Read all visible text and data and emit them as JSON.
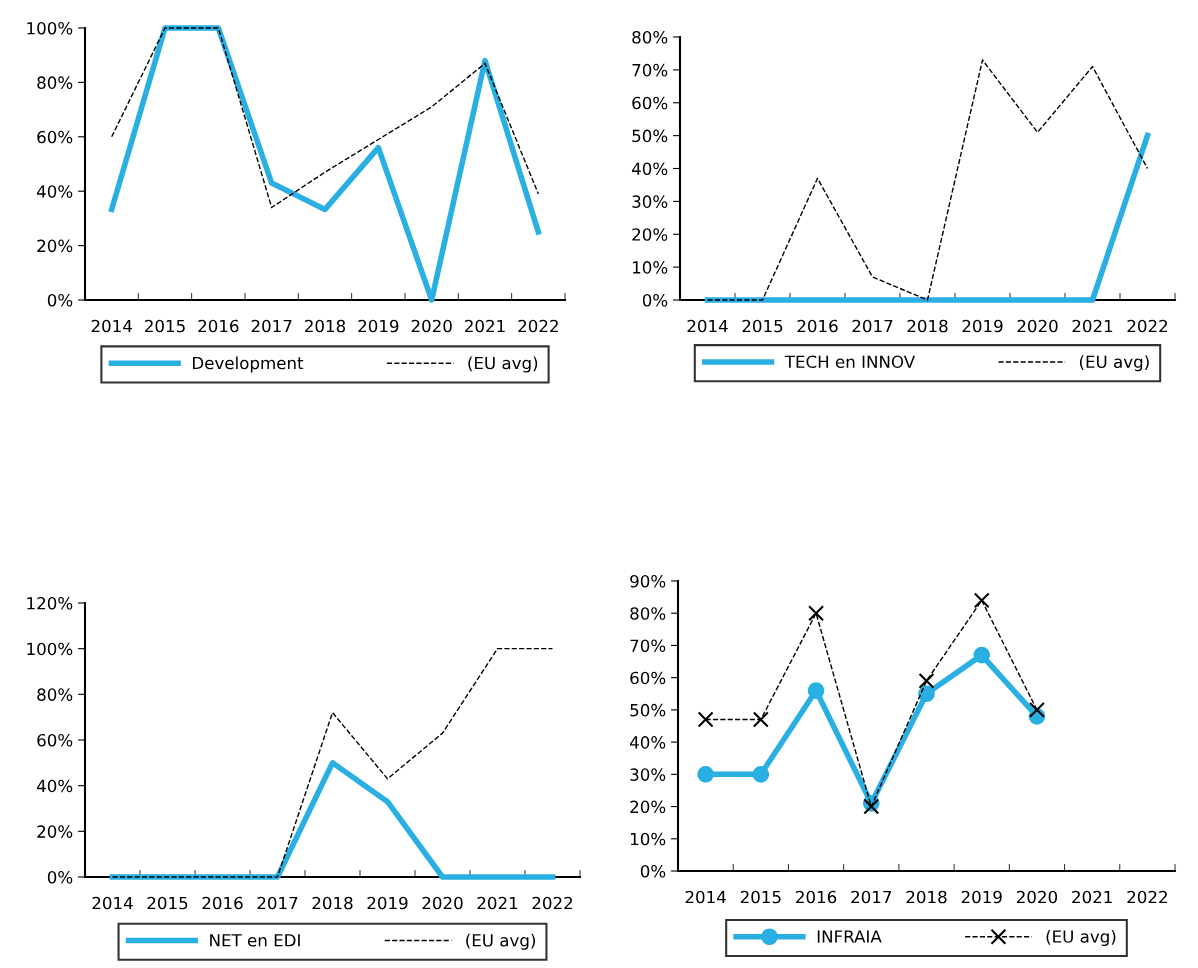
{
  "chart_data": [
    {
      "type": "line",
      "categories": [
        "2014",
        "2015",
        "2016",
        "2017",
        "2018",
        "2019",
        "2020",
        "2021",
        "2022"
      ],
      "ylim": [
        0,
        100
      ],
      "yticks": [
        {
          "value": 0,
          "label": "0%"
        },
        {
          "value": 20,
          "label": "20%"
        },
        {
          "value": 40,
          "label": "40%"
        },
        {
          "value": 60,
          "label": "60%"
        },
        {
          "value": 80,
          "label": "80%"
        },
        {
          "value": 100,
          "label": "100%"
        }
      ],
      "legend": "bottom",
      "grid": false,
      "series": [
        {
          "name": "Development",
          "color": "#29afe2",
          "line_style": "solid",
          "marker": "none",
          "values": [
            33.3,
            100,
            100,
            43,
            33.3,
            56,
            0,
            88,
            25
          ]
        },
        {
          "name": "(EU avg)",
          "color": "#000000",
          "line_style": "dashed",
          "marker": "none",
          "values": [
            60,
            100,
            100,
            34,
            47,
            59,
            71,
            87,
            39
          ]
        }
      ]
    },
    {
      "type": "line",
      "categories": [
        "2014",
        "2015",
        "2016",
        "2017",
        "2018",
        "2019",
        "2020",
        "2021",
        "2022"
      ],
      "ylim": [
        0,
        80
      ],
      "yticks": [
        {
          "value": 0,
          "label": "0%"
        },
        {
          "value": 10,
          "label": "10%"
        },
        {
          "value": 20,
          "label": "20%"
        },
        {
          "value": 30,
          "label": "30%"
        },
        {
          "value": 40,
          "label": "40%"
        },
        {
          "value": 50,
          "label": "50%"
        },
        {
          "value": 60,
          "label": "60%"
        },
        {
          "value": 70,
          "label": "70%"
        },
        {
          "value": 80,
          "label": "80%"
        }
      ],
      "legend": "bottom",
      "grid": false,
      "series": [
        {
          "name": "TECH en INNOV",
          "color": "#29afe2",
          "line_style": "solid",
          "marker": "none",
          "values": [
            0,
            0,
            0,
            0,
            0,
            0,
            0,
            0,
            50
          ]
        },
        {
          "name": "(EU avg)",
          "color": "#000000",
          "line_style": "dashed",
          "marker": "none",
          "values": [
            0,
            0,
            37,
            7,
            0,
            73,
            51,
            71,
            40
          ]
        }
      ]
    },
    {
      "type": "line",
      "categories": [
        "2014",
        "2015",
        "2016",
        "2017",
        "2018",
        "2019",
        "2020",
        "2021",
        "2022"
      ],
      "ylim": [
        0,
        120
      ],
      "yticks": [
        {
          "value": 0,
          "label": "0%"
        },
        {
          "value": 20,
          "label": "20%"
        },
        {
          "value": 40,
          "label": "40%"
        },
        {
          "value": 60,
          "label": "60%"
        },
        {
          "value": 80,
          "label": "80%"
        },
        {
          "value": 100,
          "label": "100%"
        },
        {
          "value": 120,
          "label": "120%"
        }
      ],
      "legend": "bottom",
      "grid": false,
      "series": [
        {
          "name": "NET en EDI",
          "color": "#29afe2",
          "line_style": "solid",
          "marker": "none",
          "values": [
            0,
            0,
            0,
            0,
            50,
            33,
            0,
            0,
            0
          ]
        },
        {
          "name": "(EU avg)",
          "color": "#000000",
          "line_style": "dashed",
          "marker": "none",
          "values": [
            0,
            0,
            0,
            0,
            72,
            43,
            63,
            100,
            100
          ]
        }
      ]
    },
    {
      "type": "line",
      "categories": [
        "2014",
        "2015",
        "2016",
        "2017",
        "2018",
        "2019",
        "2020",
        "2021",
        "2022"
      ],
      "ylim": [
        0,
        90
      ],
      "yticks": [
        {
          "value": 0,
          "label": "0%"
        },
        {
          "value": 10,
          "label": "10%"
        },
        {
          "value": 20,
          "label": "20%"
        },
        {
          "value": 30,
          "label": "30%"
        },
        {
          "value": 40,
          "label": "40%"
        },
        {
          "value": 50,
          "label": "50%"
        },
        {
          "value": 60,
          "label": "60%"
        },
        {
          "value": 70,
          "label": "70%"
        },
        {
          "value": 80,
          "label": "80%"
        },
        {
          "value": 90,
          "label": "90%"
        }
      ],
      "legend": "bottom",
      "grid": false,
      "series": [
        {
          "name": "INFRAIA",
          "color": "#29afe2",
          "line_style": "solid",
          "marker": "circle",
          "values": [
            30,
            30,
            56,
            21,
            55,
            67,
            48,
            null,
            null
          ]
        },
        {
          "name": "(EU avg)",
          "color": "#000000",
          "line_style": "dashed",
          "marker": "cross",
          "values": [
            47,
            47,
            80,
            20,
            59,
            84,
            50,
            null,
            null
          ]
        }
      ]
    }
  ]
}
